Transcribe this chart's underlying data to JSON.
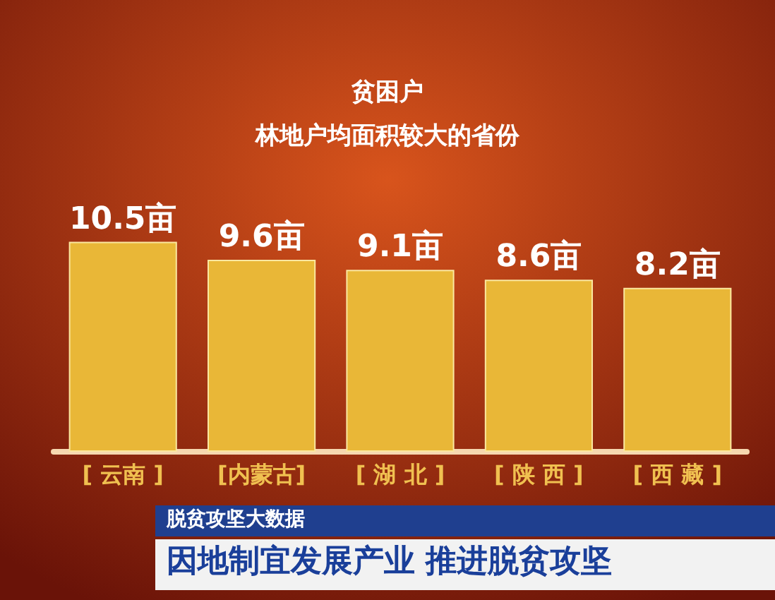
{
  "chart_data": {
    "type": "bar",
    "title": "贫困户",
    "subtitle": "林地户均面积较大的省份",
    "categories": [
      "[ 云南 ]",
      "[内蒙古]",
      "[ 湖 北 ]",
      "[ 陕 西 ]",
      "[ 西 藏 ]"
    ],
    "values": [
      10.5,
      9.6,
      9.1,
      8.6,
      8.2
    ],
    "value_labels": [
      "10.5亩",
      "9.6亩",
      "9.1亩",
      "8.6亩",
      "8.2亩"
    ],
    "color": "#e9b737",
    "annotations": [
      "脱贫攻坚大数据",
      "因地制宜发展产业 推进脱贫攻坚"
    ]
  }
}
